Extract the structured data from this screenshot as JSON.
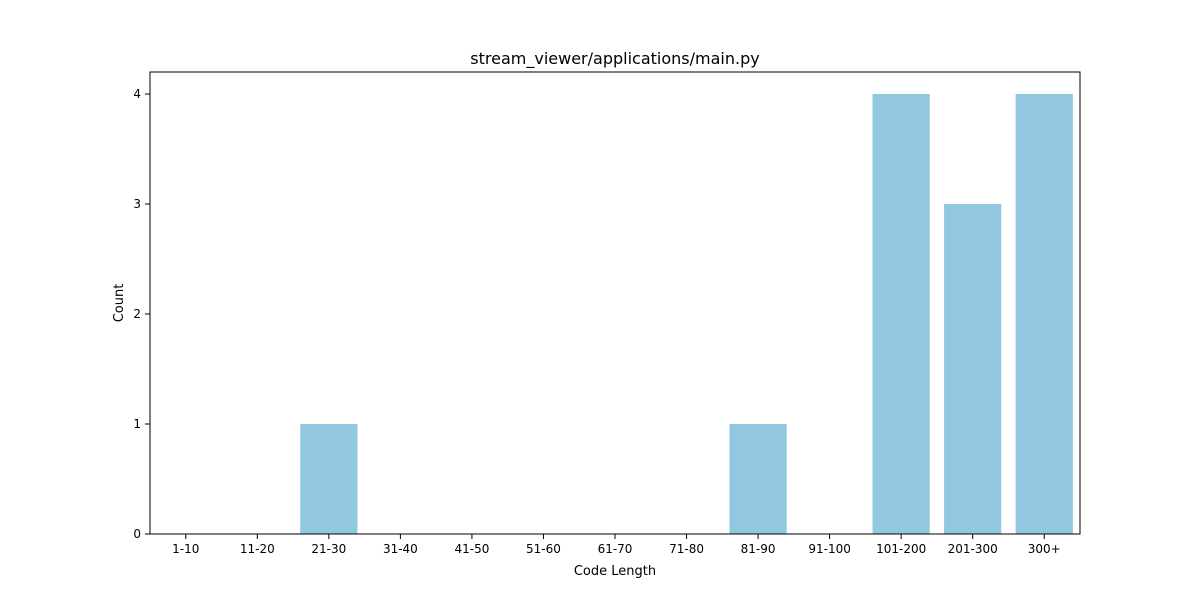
{
  "chart_data": {
    "type": "bar",
    "title": "stream_viewer/applications/main.py",
    "xlabel": "Code Length",
    "ylabel": "Count",
    "categories": [
      "1-10",
      "11-20",
      "21-30",
      "31-40",
      "41-50",
      "51-60",
      "61-70",
      "71-80",
      "81-90",
      "91-100",
      "101-200",
      "201-300",
      "300+"
    ],
    "values": [
      0,
      0,
      1,
      0,
      0,
      0,
      0,
      0,
      1,
      0,
      4,
      3,
      4
    ],
    "ylim": [
      0,
      4.2
    ],
    "yticks": [
      0,
      1,
      2,
      3,
      4
    ],
    "grid": false,
    "bar_color": "#92c8df"
  }
}
